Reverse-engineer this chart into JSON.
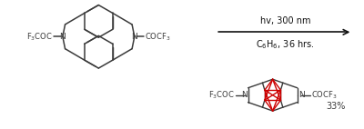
{
  "figsize": [
    4.0,
    1.42
  ],
  "dpi": 100,
  "bg_color": "#ffffff",
  "line1_text": "hv, 300 nm",
  "line2_text": "C$_6$H$_6$, 36 hrs.",
  "yield_text": "33%",
  "fontsize_reaction": 7.0,
  "fontsize_label": 6.5,
  "fontsize_yield": 7.0,
  "mol_color": "#3a3a3a",
  "red_color": "#cc0000"
}
